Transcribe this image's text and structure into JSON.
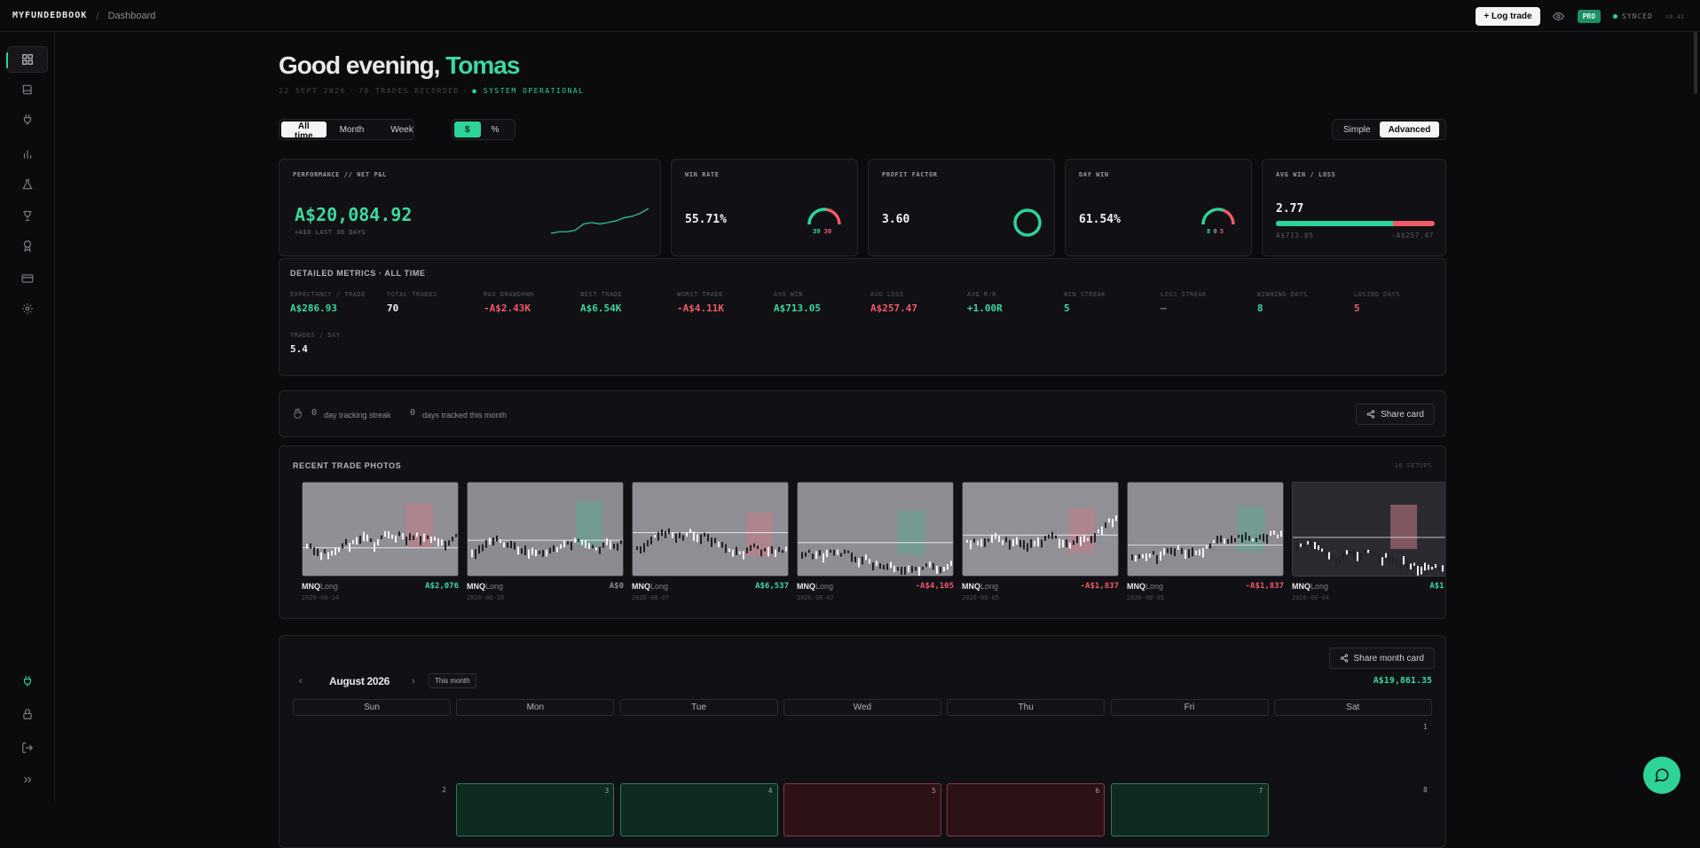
{
  "topbar": {
    "brand": "MYFUNDEDBOOK",
    "separator": "/",
    "breadcrumb": "Dashboard",
    "log_trade": "+ Log trade",
    "pro": "PRO",
    "synced": "SYNCED",
    "version": "v4.41"
  },
  "colors": {
    "accent": "#2ed39a",
    "loss": "#ef5a67",
    "background": "#0b0b0e"
  },
  "sidebar": {
    "items": [
      {
        "icon": "grid-icon",
        "active": true
      },
      {
        "icon": "book-icon"
      },
      {
        "icon": "plug-icon"
      },
      {
        "icon": "bar-chart-icon"
      },
      {
        "icon": "flask-icon"
      },
      {
        "icon": "trophy-icon"
      },
      {
        "icon": "award-icon"
      },
      {
        "icon": "card-icon"
      },
      {
        "icon": "gear-icon"
      }
    ],
    "bottom": [
      {
        "icon": "plug-icon"
      },
      {
        "icon": "lock-icon"
      },
      {
        "icon": "logout-icon"
      },
      {
        "icon": "chevrons-right-icon"
      }
    ]
  },
  "greeting": {
    "prefix": "Good evening, ",
    "name": "Tomas",
    "date": "22 SEPT 2026",
    "sep": "·",
    "trades": "70 TRADES RECORDED",
    "sep2": "·",
    "status": "● SYSTEM OPERATIONAL"
  },
  "filters": {
    "range": [
      "All time",
      "Month",
      "Week"
    ],
    "range_selected": "All time",
    "unit": [
      "$",
      "%"
    ],
    "unit_selected": "$",
    "mode": [
      "Simple",
      "Advanced"
    ],
    "mode_selected": "Advanced"
  },
  "kpis": {
    "pnl": {
      "label": "PERFORMANCE // NET P&L",
      "value": "A$20,084.92",
      "sub": "+A$0 LAST 30 DAYS",
      "spark": [
        2,
        3,
        3,
        4,
        8,
        9,
        8,
        9,
        10,
        12,
        13,
        15,
        18
      ]
    },
    "win_rate": {
      "label": "WIN RATE",
      "value": "55.71%",
      "wins": "39",
      "losses": "30",
      "fraction": 0.5571
    },
    "profit_factor": {
      "label": "PROFIT FACTOR",
      "value": "3.60"
    },
    "day_win": {
      "label": "DAY WIN",
      "value": "61.54%",
      "w": "8",
      "be": "0",
      "l": "5",
      "fraction": 0.6154
    },
    "avg_win_loss": {
      "label": "AVG WIN / LOSS",
      "value": "2.77",
      "win": "A$713.05",
      "loss": "-A$257.47",
      "win_fraction": 0.735
    }
  },
  "detailed": {
    "title": "DETAILED METRICS · ALL TIME",
    "metrics": [
      {
        "label": "EXPECTANCY / TRADE",
        "value": "A$286.93",
        "tone": "green"
      },
      {
        "label": "TOTAL TRADES",
        "value": "70",
        "tone": "white"
      },
      {
        "label": "MAX DRAWDOWN",
        "value": "-A$2.43K",
        "tone": "red"
      },
      {
        "label": "BEST TRADE",
        "value": "A$6.54K",
        "tone": "green"
      },
      {
        "label": "WORST TRADE",
        "value": "-A$4.11K",
        "tone": "red"
      },
      {
        "label": "AVG WIN",
        "value": "A$713.05",
        "tone": "green"
      },
      {
        "label": "AVG LOSS",
        "value": "A$257.47",
        "tone": "red"
      },
      {
        "label": "AVG R:R",
        "value": "+1.00R",
        "tone": "green"
      },
      {
        "label": "WIN STREAK",
        "value": "5",
        "tone": "green"
      },
      {
        "label": "LOSS STREAK",
        "value": "—",
        "tone": "grey"
      },
      {
        "label": "WINNING DAYS",
        "value": "8",
        "tone": "green"
      },
      {
        "label": "LOSING DAYS",
        "value": "5",
        "tone": "red"
      },
      {
        "label": "TRADES / DAY",
        "value": "5.4",
        "tone": "white"
      }
    ]
  },
  "streak": {
    "count1": "0",
    "text1": "day tracking streak",
    "count2": "0",
    "text2": "days tracked this month",
    "share": "Share card"
  },
  "photos": {
    "title": "RECENT TRADE PHOTOS",
    "count": "10 SETUPS",
    "items": [
      {
        "symbol": "MNQ",
        "side": "Long",
        "date": "2026-08-14",
        "pnl": "A$2,076",
        "tone": "green"
      },
      {
        "symbol": "MNQ",
        "side": "Long",
        "date": "2026-08-10",
        "pnl": "A$0",
        "tone": "grey"
      },
      {
        "symbol": "MNQ",
        "side": "Long",
        "date": "2026-08-07",
        "pnl": "A$6,537",
        "tone": "green"
      },
      {
        "symbol": "MNQ",
        "side": "Long",
        "date": "2026-08-07",
        "pnl": "-A$4,105",
        "tone": "red"
      },
      {
        "symbol": "MNQ",
        "side": "Long",
        "date": "2026-08-05",
        "pnl": "-A$1,837",
        "tone": "red"
      },
      {
        "symbol": "MNQ",
        "side": "Long",
        "date": "2026-08-05",
        "pnl": "-A$1,837",
        "tone": "red"
      },
      {
        "symbol": "MNQ",
        "side": "Long",
        "date": "2026-08-04",
        "pnl": "A$1,",
        "tone": "green"
      }
    ]
  },
  "calendar": {
    "share": "Share month card",
    "prev": "‹",
    "month": "August 2026",
    "next": "›",
    "this_month": "This month",
    "total": "A$19,861.35",
    "days": [
      "Sun",
      "Mon",
      "Tue",
      "Wed",
      "Thu",
      "Fri",
      "Sat"
    ],
    "row1": [
      {
        "n": ""
      },
      {
        "n": ""
      },
      {
        "n": ""
      },
      {
        "n": ""
      },
      {
        "n": ""
      },
      {
        "n": ""
      },
      {
        "n": "1"
      }
    ],
    "row2": [
      {
        "n": "2",
        "tone": "none"
      },
      {
        "n": "3",
        "tone": "green"
      },
      {
        "n": "4",
        "tone": "green"
      },
      {
        "n": "5",
        "tone": "red"
      },
      {
        "n": "6",
        "tone": "red"
      },
      {
        "n": "7",
        "tone": "green"
      },
      {
        "n": "8",
        "tone": "none"
      }
    ]
  }
}
